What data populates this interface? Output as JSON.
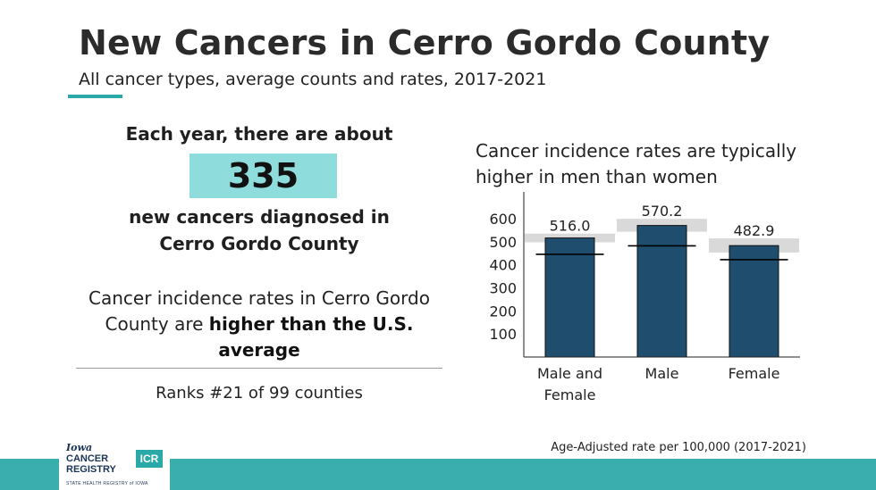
{
  "header": {
    "title": "New Cancers in Cerro Gordo County",
    "subtitle": "All cancer types, average counts and rates, 2017-2021"
  },
  "summary": {
    "each_year": "Each year, there are about",
    "count": "335",
    "diagnosed_line1": "new cancers diagnosed in",
    "diagnosed_line2": "Cerro Gordo County",
    "compare_prefix": "Cancer incidence rates in Cerro Gordo County are",
    "compare_bold": "higher than the U.S. average",
    "ranks": "Ranks #21 of 99 counties"
  },
  "chart_caption": "Cancer incidence rates are typically higher in men than women",
  "footnote": "Age-Adjusted rate per 100,000 (2017-2021)",
  "logo": {
    "line1": "Iowa",
    "line2": "CANCER",
    "line3": "REGISTRY",
    "badge": "ICR",
    "tagline": "STATE HEALTH REGISTRY of IOWA"
  },
  "colors": {
    "bar": "#1e4d6e",
    "ci_band": "#d9d9d9",
    "us_line": "#000000",
    "accent": "#3aaeae",
    "count_box": "#8fdcdc"
  },
  "chart_data": {
    "type": "bar",
    "categories": [
      [
        "Male and",
        "Female"
      ],
      [
        "Male"
      ],
      [
        "Female"
      ]
    ],
    "values": [
      516.0,
      570.2,
      482.9
    ],
    "value_labels": [
      "516.0",
      "570.2",
      "482.9"
    ],
    "ci_low": [
      497,
      543,
      453
    ],
    "ci_high": [
      535,
      599,
      514
    ],
    "us_rate": [
      445,
      482,
      422
    ],
    "yticks": [
      100,
      200,
      300,
      400,
      500,
      600
    ],
    "ylim": [
      0,
      650
    ],
    "grid": false
  }
}
